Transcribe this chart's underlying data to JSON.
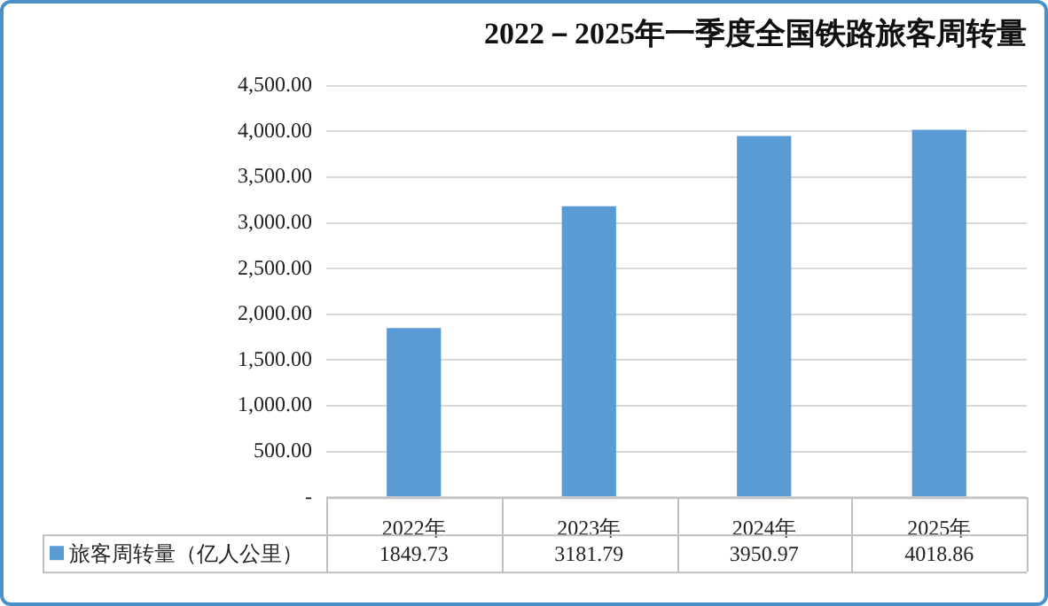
{
  "chart_data": {
    "type": "bar",
    "title": "2022－2025年一季度全国铁路旅客周转量",
    "categories": [
      "2022年",
      "2023年",
      "2024年",
      "2025年"
    ],
    "series": [
      {
        "name": "旅客周转量（亿人公里）",
        "color": "#5b9bd5",
        "values": [
          1849.73,
          3181.79,
          3950.97,
          4018.86
        ]
      }
    ],
    "ylim": [
      0,
      4500
    ],
    "yticks": [
      {
        "value": 0,
        "label": "-"
      },
      {
        "value": 500,
        "label": "500.00"
      },
      {
        "value": 1000,
        "label": "1,000.00"
      },
      {
        "value": 1500,
        "label": "1,500.00"
      },
      {
        "value": 2000,
        "label": "2,000.00"
      },
      {
        "value": 2500,
        "label": "2,500.00"
      },
      {
        "value": 3000,
        "label": "3,000.00"
      },
      {
        "value": 3500,
        "label": "3,500.00"
      },
      {
        "value": 4000,
        "label": "4,000.00"
      },
      {
        "value": 4500,
        "label": "4,500.00"
      }
    ],
    "grid": "y",
    "legend": "bottom",
    "data_labels": true
  }
}
